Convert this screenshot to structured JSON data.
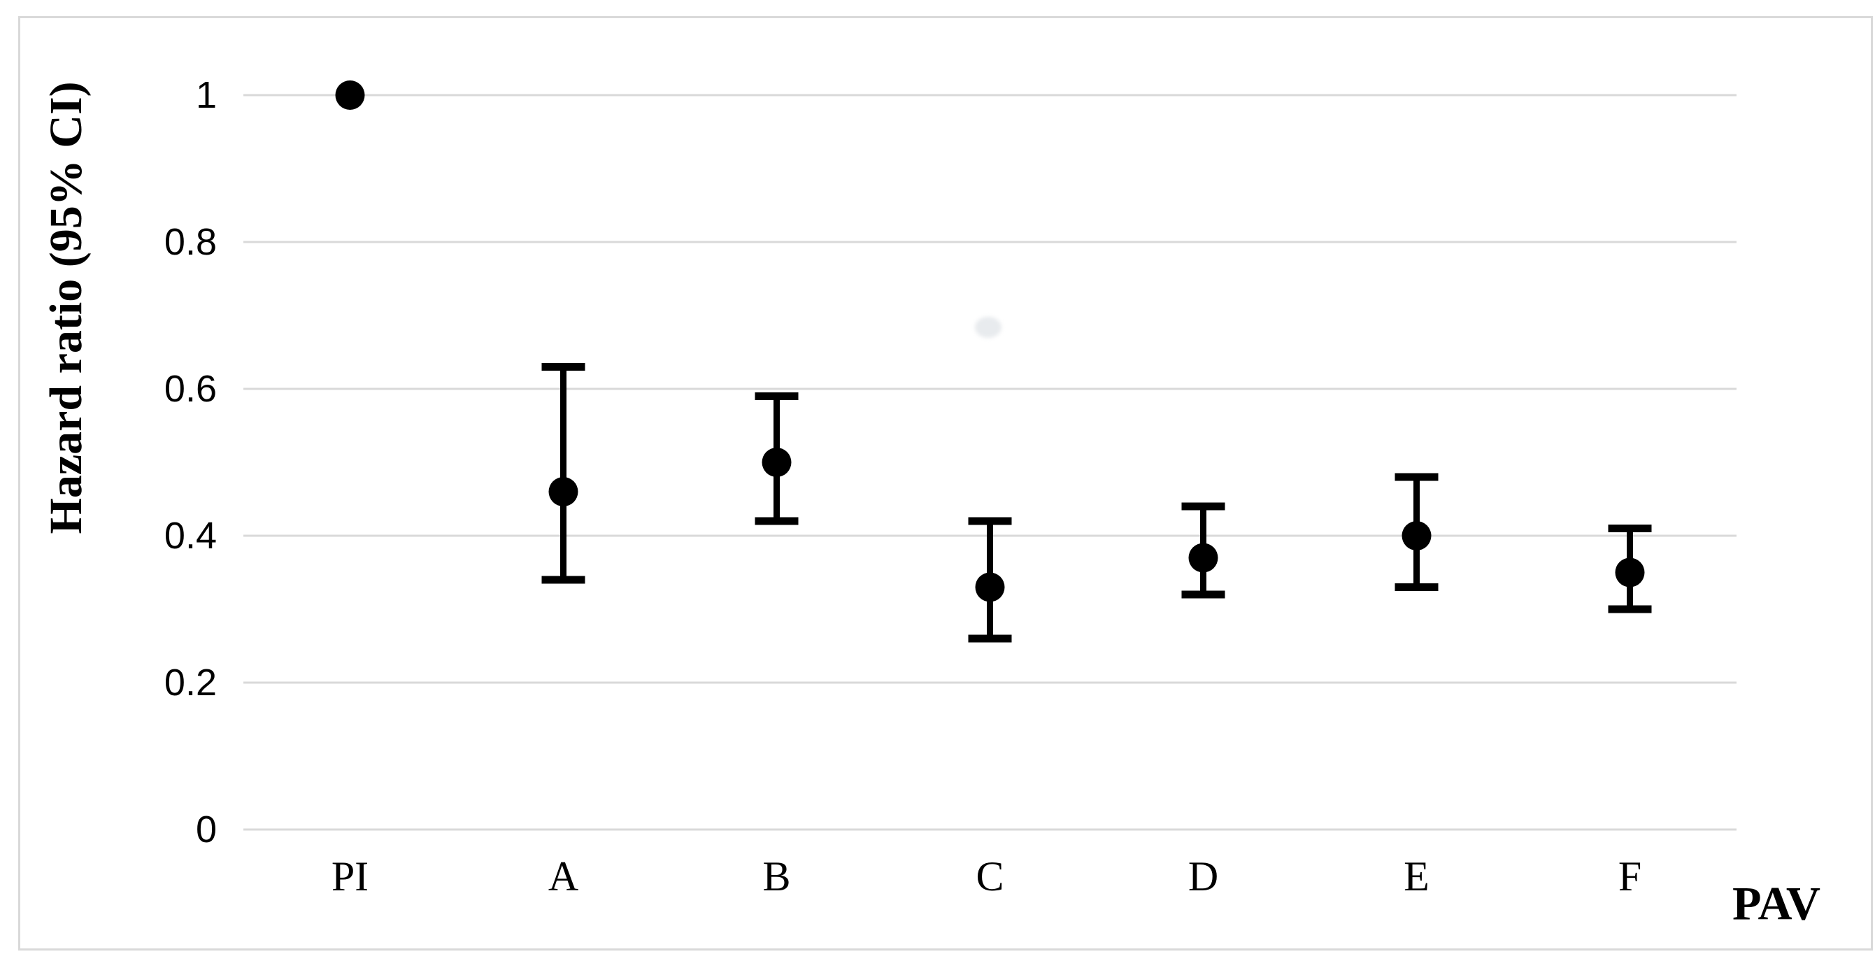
{
  "chart_data": {
    "type": "scatter",
    "subtype": "errorbar-forest-plot",
    "title": "",
    "xlabel": "PAV",
    "ylabel": "Hazard ratio (95% CI)",
    "categories": [
      "PI",
      "A",
      "B",
      "C",
      "D",
      "E",
      "F"
    ],
    "series": [
      {
        "name": "Hazard ratio (95% CI)",
        "values": [
          1.0,
          0.46,
          0.5,
          0.33,
          0.37,
          0.4,
          0.35
        ],
        "ci_low": [
          null,
          0.34,
          0.42,
          0.26,
          0.32,
          0.33,
          0.3
        ],
        "ci_high": [
          null,
          0.63,
          0.59,
          0.42,
          0.44,
          0.48,
          0.41
        ]
      }
    ],
    "ylim": [
      0,
      1.05
    ],
    "yticks": [
      {
        "value": 0,
        "label": "0"
      },
      {
        "value": 0.2,
        "label": "0.2"
      },
      {
        "value": 0.4,
        "label": "0.4"
      },
      {
        "value": 0.6,
        "label": "0.6"
      },
      {
        "value": 0.8,
        "label": "0.8"
      },
      {
        "value": 1,
        "label": "1"
      }
    ],
    "grid": true,
    "legend": false,
    "colors": {
      "marker": "#000000",
      "errorbar": "#000000",
      "gridline": "#d9d9d9",
      "frame": "#d9d9d9",
      "text": "#000000"
    }
  }
}
